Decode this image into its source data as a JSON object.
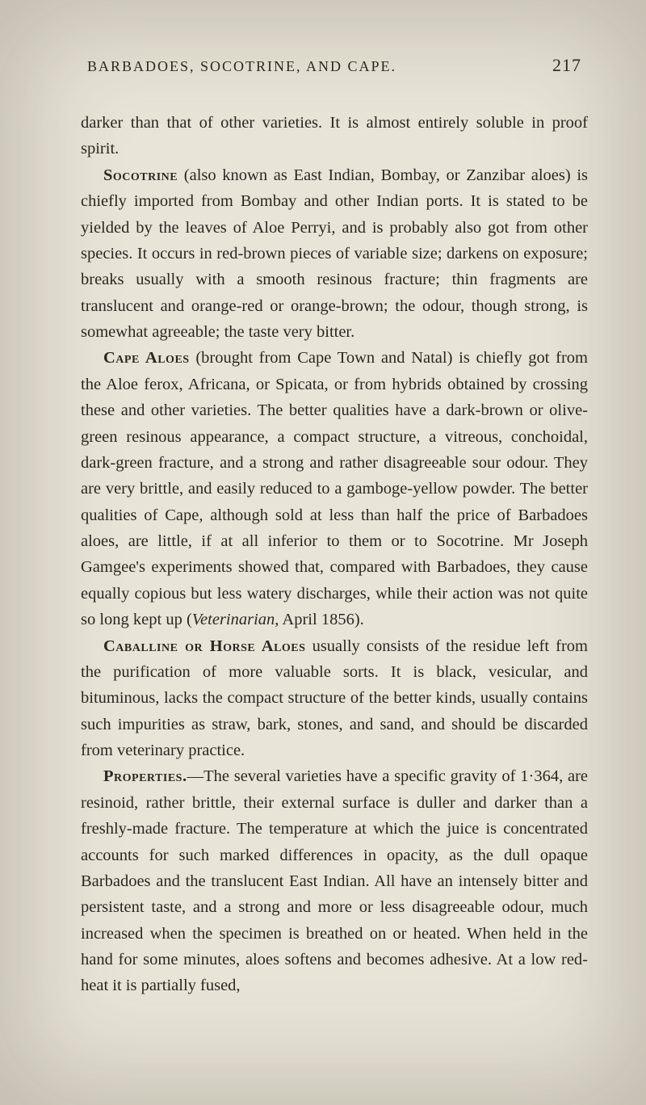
{
  "page": {
    "running_head": "BARBADOES, SOCOTRINE, AND CAPE.",
    "page_number": "217",
    "background_color": "#e8e4d8",
    "text_color": "#2a2820",
    "font_family": "Georgia, serif",
    "body_fontsize": 20.5,
    "line_height": 1.58,
    "header_fontsize": 18,
    "pagenum_fontsize": 22,
    "text_indent": 28
  },
  "paragraphs": {
    "p1": "darker than that of other varieties. It is almost entirely soluble in proof spirit.",
    "p2_lead": "Socotrine",
    "p2_rest": " (also known as East Indian, Bombay, or Zanzi­bar aloes) is chiefly imported from Bombay and other Indian ports. It is stated to be yielded by the leaves of Aloe Perryi, and is probably also got from other species. It occurs in red-brown pieces of variable size; darkens on exposure; breaks usually with a smooth resinous fracture; thin fragments are translucent and orange-red or orange-brown; the odour, though strong, is somewhat agreeable; the taste very bitter.",
    "p3_lead": "Cape Aloes",
    "p3_rest": " (brought from Cape Town and Natal) is chiefly got from the Aloe ferox, Africana, or Spicata, or from hybrids obtained by crossing these and other varieties. The better qualities have a dark-brown or olive-green resinous appearance, a compact structure, a vitreous, conchoidal, dark-green fracture, and a strong and rather disagreeable sour odour. They are very brittle, and easily reduced to a gamboge-yellow powder. The better qualities of Cape, although sold at less than half the price of Barbadoes aloes, are little, if at all inferior to them or to Socotrine. Mr Joseph Gamgee's experiments showed that, compared with Barbadoes, they cause equally copious but less watery discharges, while their action was not quite so long kept up (",
    "p3_italic": "Veterinarian",
    "p3_tail": ", April 1856).",
    "p4_lead": "Caballine or Horse Aloes",
    "p4_rest": " usually consists of the residue left from the purification of more valuable sorts. It is black, vesicular, and bituminous, lacks the compact structure of the better kinds, usually contains such impurities as straw, bark, stones, and sand, and should be discarded from veterinary practice.",
    "p5_lead": "Properties.",
    "p5_rest": "—The several varieties have a specific gravity of 1·364, are resinoid, rather brittle, their external surface is duller and darker than a freshly-made fracture. The tem­perature at which the juice is concentrated accounts for such marked differences in opacity, as the dull opaque Barbadoes and the translucent East Indian. All have an intensely bitter and persistent taste, and a strong and more or less disagreeable odour, much increased when the specimen is breathed on or heated. When held in the hand for some minutes, aloes softens and becomes adhesive. At a low red-heat it is partially fused,"
  }
}
